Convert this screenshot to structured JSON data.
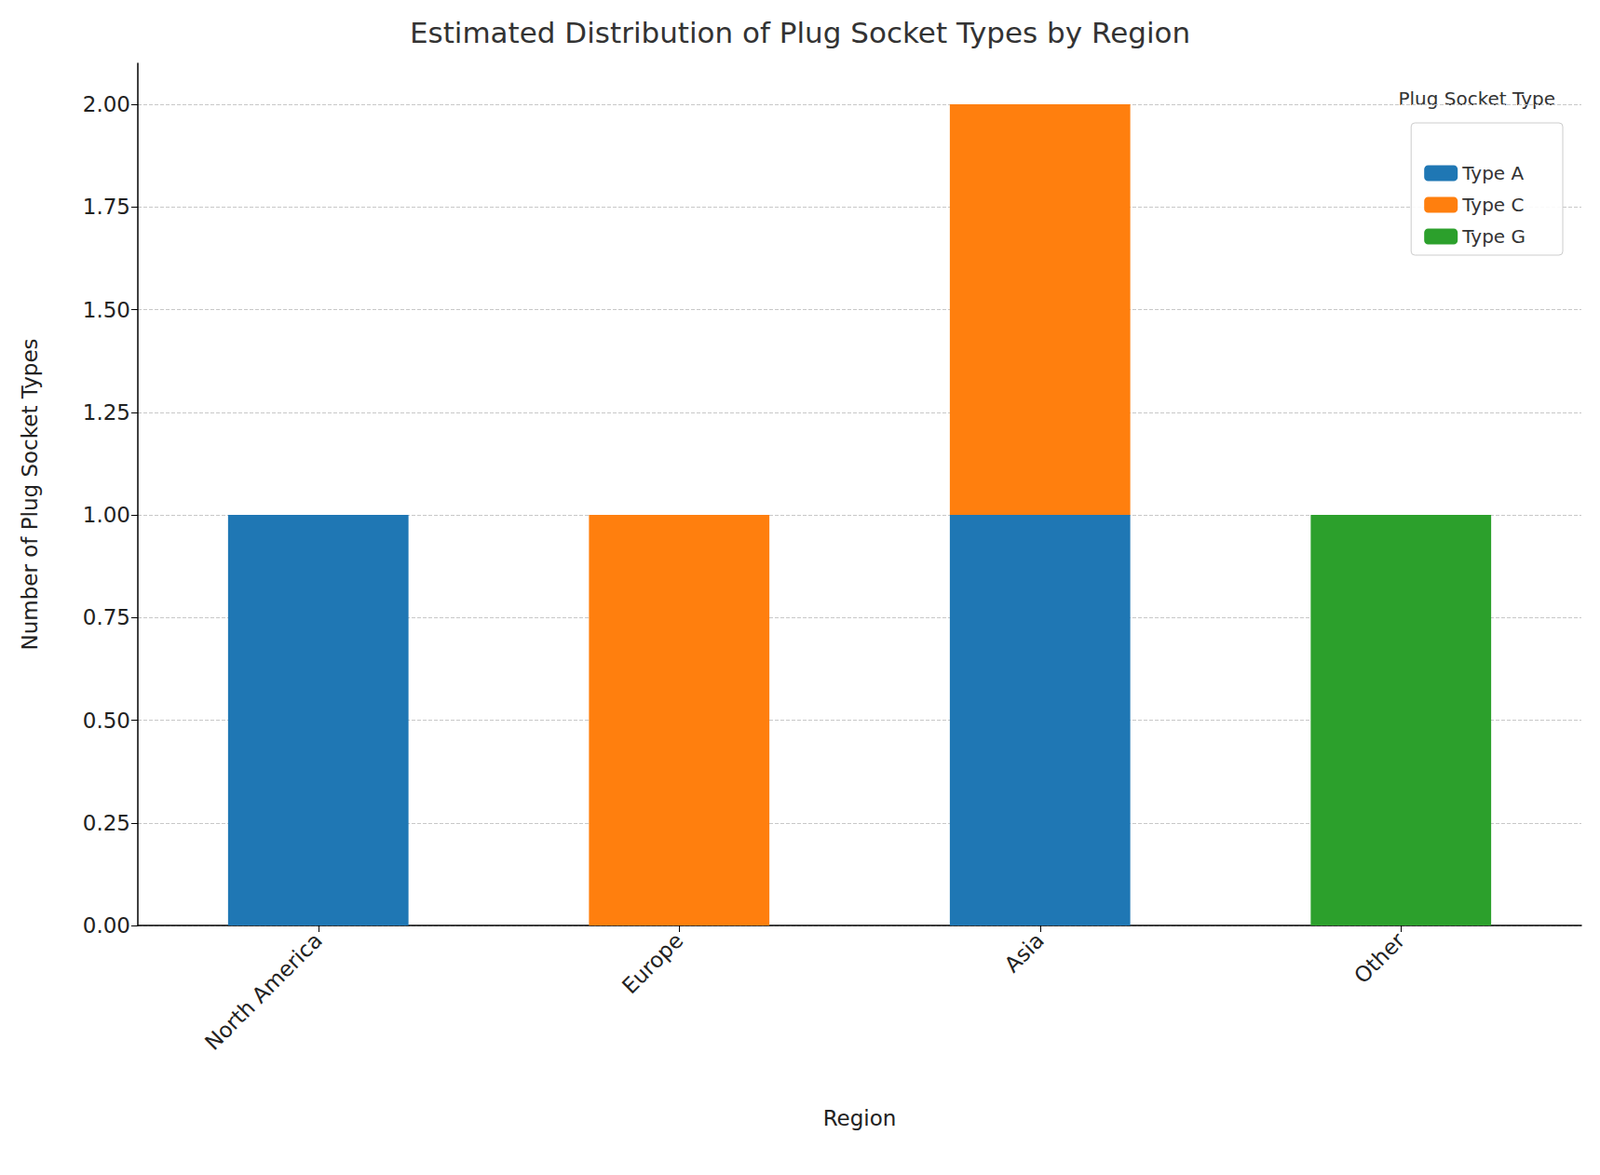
{
  "chart_data": {
    "type": "bar",
    "title": "Estimated Distribution of Plug Socket Types by Region",
    "x_label": "Region",
    "y_label": "Number of Plug Socket Types",
    "categories": [
      "North America",
      "Europe",
      "Asia",
      "Other"
    ],
    "series": [
      {
        "name": "Type A",
        "color": "#1f77b4",
        "values": [
          1,
          0,
          1,
          0
        ]
      },
      {
        "name": "Type C",
        "color": "#ff7f0e",
        "values": [
          0,
          1,
          1,
          0
        ]
      },
      {
        "name": "Type G",
        "color": "#2ca02c",
        "values": [
          0,
          0,
          0,
          1
        ]
      }
    ],
    "stacked": true,
    "ylim": [
      0,
      2.1
    ],
    "yticks": [
      {
        "value": 0,
        "label": "0.00"
      },
      {
        "value": 0.25,
        "label": "0.25"
      },
      {
        "value": 0.5,
        "label": "0.50"
      },
      {
        "value": 0.75,
        "label": "0.75"
      },
      {
        "value": 1,
        "label": "1.00"
      },
      {
        "value": 1.25,
        "label": "1.25"
      },
      {
        "value": 1.5,
        "label": "1.50"
      },
      {
        "value": 1.75,
        "label": "1.75"
      },
      {
        "value": 2,
        "label": "2.00"
      }
    ],
    "grid": true,
    "legend": "upper right",
    "legend_title": "Plug Socket Type"
  }
}
